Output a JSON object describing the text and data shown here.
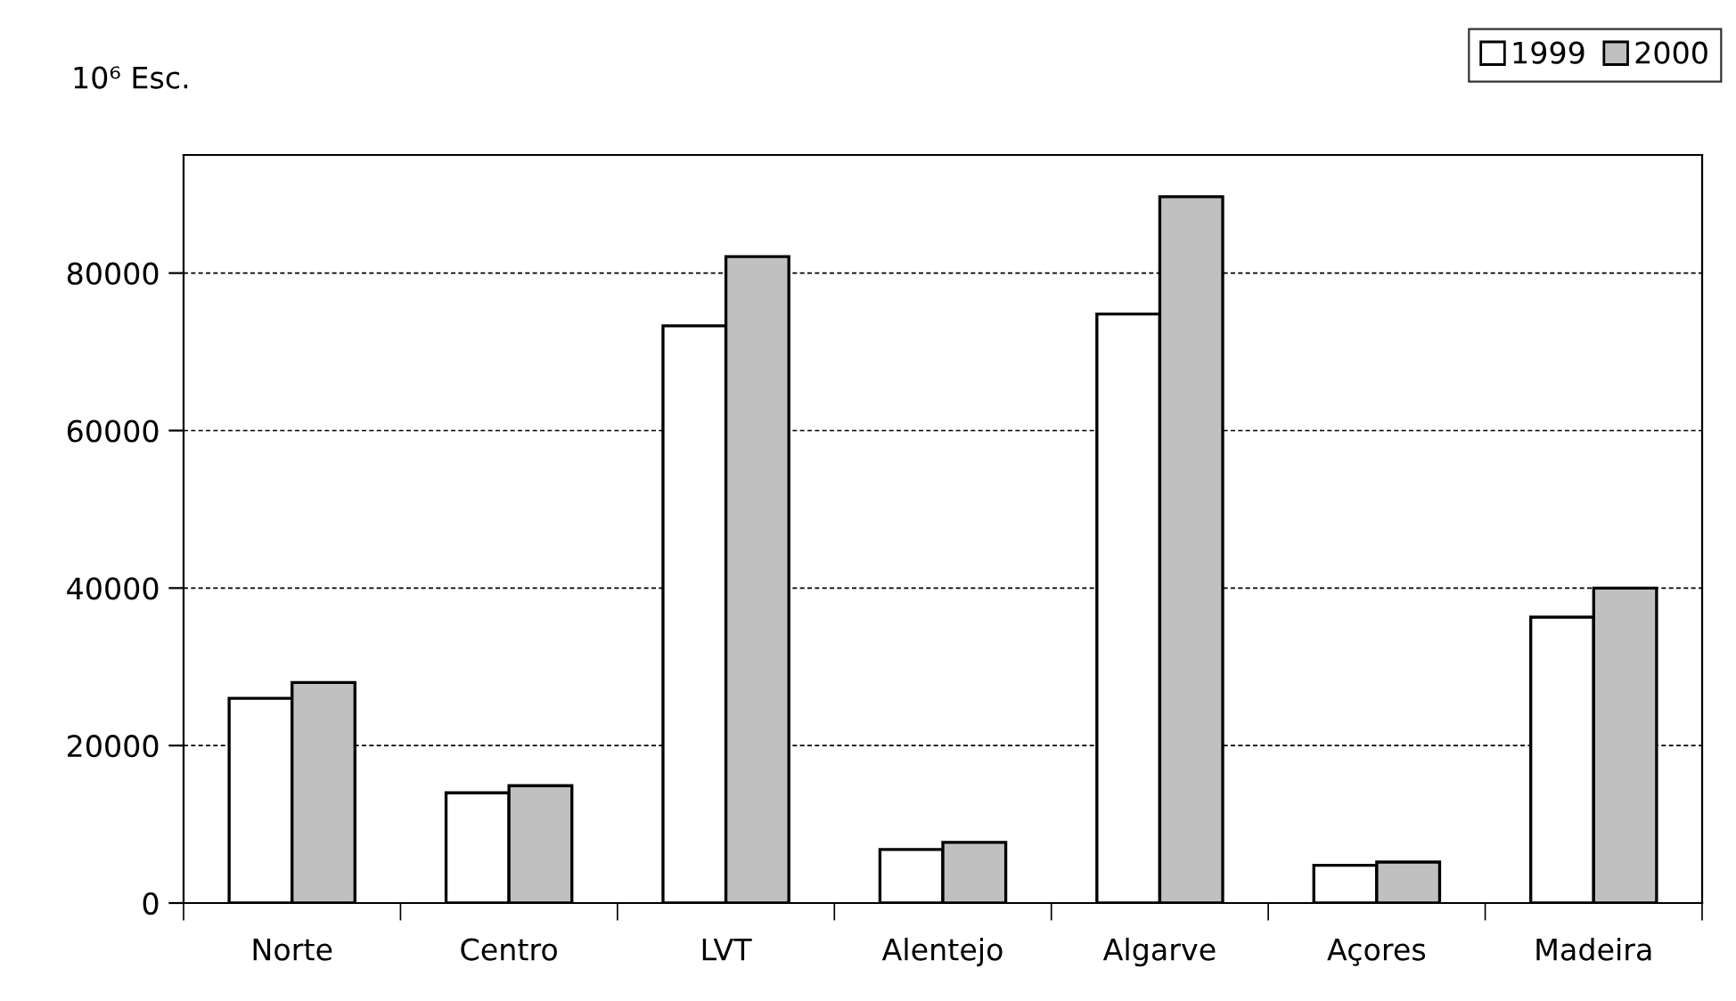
{
  "chart_data": {
    "type": "bar",
    "ylabel": "10⁶ Esc.",
    "categories": [
      "Norte",
      "Centro",
      "LVT",
      "Alentejo",
      "Algarve",
      "Açores",
      "Madeira"
    ],
    "series": [
      {
        "name": "1999",
        "color": "#ffffff",
        "values": [
          26000,
          14000,
          73300,
          6800,
          74800,
          4800,
          36300
        ]
      },
      {
        "name": "2000",
        "color": "#c0c0c0",
        "values": [
          28000,
          14900,
          82100,
          7700,
          89700,
          5200,
          40000
        ]
      }
    ],
    "ylim": [
      0,
      95000
    ],
    "yticks": [
      0,
      20000,
      40000,
      60000,
      80000
    ],
    "grid": "y",
    "legend": "top right"
  }
}
